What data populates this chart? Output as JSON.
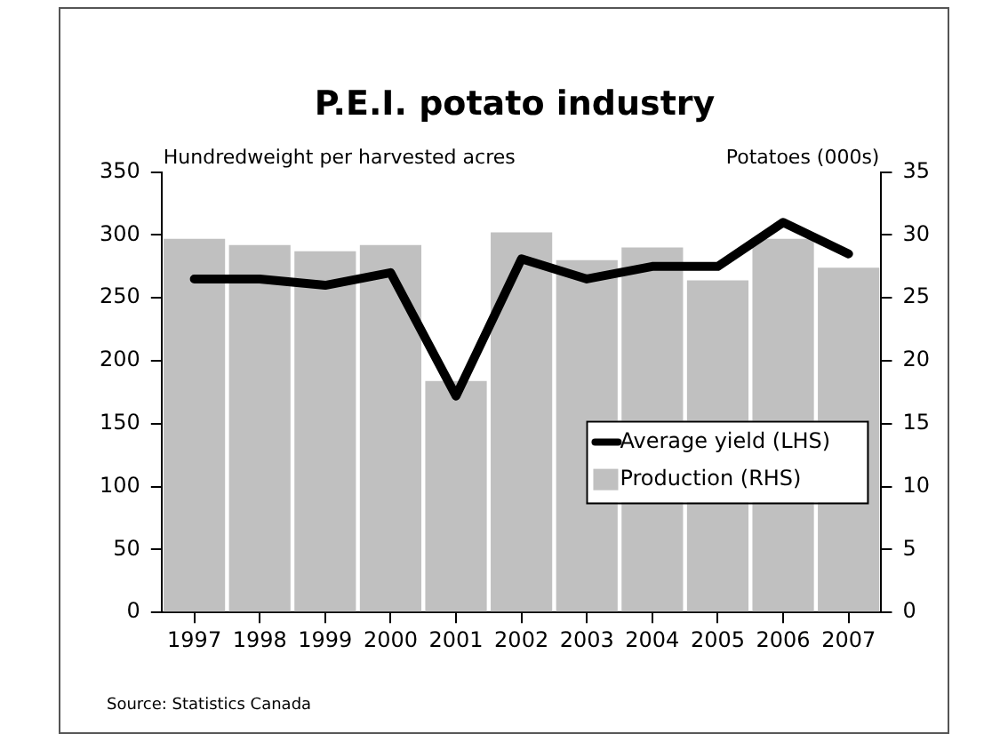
{
  "chart_data": {
    "type": "bar",
    "title": "P.E.I. potato industry",
    "ylabel": "Hundredweight per harvested acres",
    "y2label": "Potatoes (000s)",
    "categories": [
      "1997",
      "1998",
      "1999",
      "2000",
      "2001",
      "2002",
      "2003",
      "2004",
      "2005",
      "2006",
      "2007"
    ],
    "series": [
      {
        "name": "Average yield (LHS)",
        "type": "line",
        "color": "#000000",
        "values": [
          265,
          265,
          260,
          270,
          172,
          281,
          265,
          275,
          275,
          310,
          285
        ]
      },
      {
        "name": "Production (RHS)",
        "axis": "y2",
        "color": "#c0c0c0",
        "values": [
          29.7,
          29.2,
          28.7,
          29.2,
          18.4,
          30.2,
          28.0,
          29.0,
          26.4,
          29.7,
          27.4
        ]
      }
    ],
    "ylim": [
      0,
      350
    ],
    "yticks": [
      0,
      50,
      100,
      150,
      200,
      250,
      300,
      350
    ],
    "y2lim": [
      0,
      35
    ],
    "y2ticks": [
      0,
      5,
      10,
      15,
      20,
      25,
      30,
      35
    ],
    "grid": false,
    "legend": "right",
    "marker": "none",
    "line_style": "solid",
    "annotations": [
      "Source: Statistics Canada"
    ]
  }
}
